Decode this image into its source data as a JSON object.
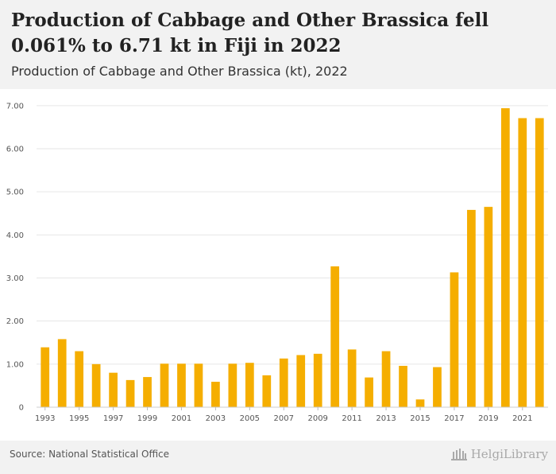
{
  "header": {
    "title": "Production of Cabbage and Other Brassica fell 0.061% to 6.71 kt in Fiji in 2022",
    "subtitle": "Production of Cabbage and Other Brassica (kt), 2022"
  },
  "footer": {
    "source": "Source: National Statistical Office",
    "logo_text": "HelgiLibrary"
  },
  "colors": {
    "bar": "#F5AE00",
    "grid": "#e6e6e6",
    "header_bg": "#f2f2f2"
  },
  "chart_data": {
    "type": "bar",
    "categories": [
      "1993",
      "1994",
      "1995",
      "1996",
      "1997",
      "1998",
      "1999",
      "2000",
      "2001",
      "2002",
      "2003",
      "2004",
      "2005",
      "2006",
      "2007",
      "2008",
      "2009",
      "2010",
      "2011",
      "2012",
      "2013",
      "2014",
      "2015",
      "2016",
      "2017",
      "2018",
      "2019",
      "2020",
      "2021",
      "2022"
    ],
    "values": [
      1.39,
      1.58,
      1.3,
      1.0,
      0.8,
      0.63,
      0.7,
      1.01,
      1.01,
      1.01,
      0.59,
      1.01,
      1.03,
      0.74,
      1.13,
      1.21,
      1.24,
      3.27,
      1.34,
      0.69,
      1.3,
      0.96,
      0.18,
      0.93,
      3.13,
      4.58,
      4.65,
      6.94,
      6.71,
      6.71
    ],
    "x_tick_labels": [
      "1993",
      "1995",
      "1997",
      "1999",
      "2001",
      "2003",
      "2005",
      "2007",
      "2009",
      "2011",
      "2013",
      "2015",
      "2017",
      "2019",
      "2021"
    ],
    "y_tick_labels": [
      "0",
      "1.00",
      "2.00",
      "3.00",
      "4.00",
      "5.00",
      "6.00",
      "7.00"
    ],
    "y_ticks": [
      0,
      1,
      2,
      3,
      4,
      5,
      6,
      7
    ],
    "ylim": [
      0,
      7.2
    ],
    "grid": true
  }
}
